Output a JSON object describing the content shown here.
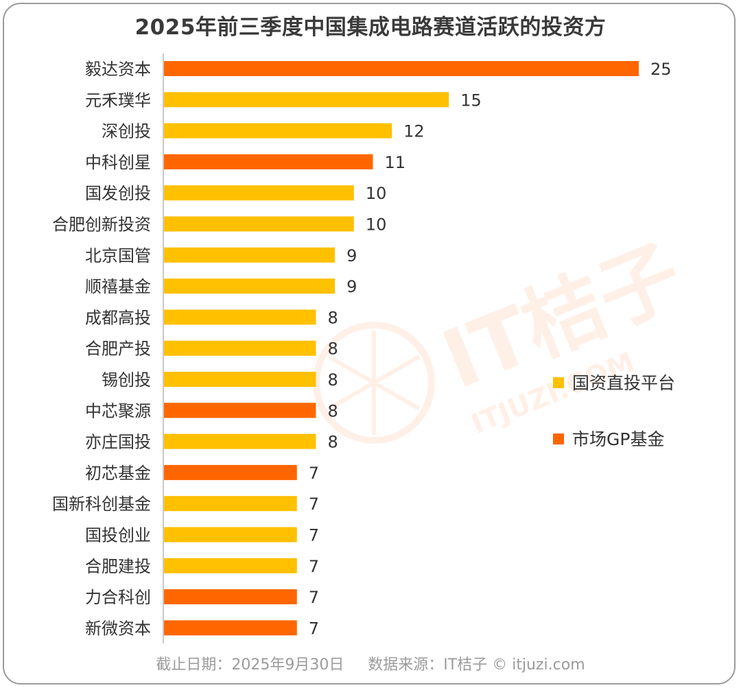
{
  "title": "2025年前三季度中国集成电路赛道活跃的投资方",
  "footer": "截止日期：2025年9月30日     数据来源：IT桔子 © itjuzi.com",
  "watermark": {
    "brand": "IT桔子",
    "domain": "ITJUZI.COM"
  },
  "colors": {
    "国资直投平台": "#FFC000",
    "市场GP基金": "#FF6600"
  },
  "chart_data": {
    "type": "bar",
    "orientation": "horizontal",
    "title": "2025年前三季度中国集成电路赛道活跃的投资方",
    "categories": [
      "毅达资本",
      "元禾璞华",
      "深创投",
      "中科创星",
      "国发创投",
      "合肥创新投资",
      "北京国管",
      "顺禧基金",
      "成都高投",
      "合肥产投",
      "锡创投",
      "中芯聚源",
      "亦庄国投",
      "初芯基金",
      "国新科创基金",
      "国投创业",
      "合肥建投",
      "力合科创",
      "新微资本"
    ],
    "values": [
      25,
      15,
      12,
      11,
      10,
      10,
      9,
      9,
      8,
      8,
      8,
      8,
      8,
      7,
      7,
      7,
      7,
      7,
      7
    ],
    "groups": [
      "市场GP基金",
      "国资直投平台",
      "国资直投平台",
      "市场GP基金",
      "国资直投平台",
      "国资直投平台",
      "国资直投平台",
      "国资直投平台",
      "国资直投平台",
      "国资直投平台",
      "国资直投平台",
      "市场GP基金",
      "国资直投平台",
      "市场GP基金",
      "国资直投平台",
      "国资直投平台",
      "国资直投平台",
      "市场GP基金",
      "市场GP基金"
    ],
    "legend": [
      "国资直投平台",
      "市场GP基金"
    ],
    "legend_position": "right",
    "xlim": [
      0,
      25
    ],
    "grid": false
  }
}
